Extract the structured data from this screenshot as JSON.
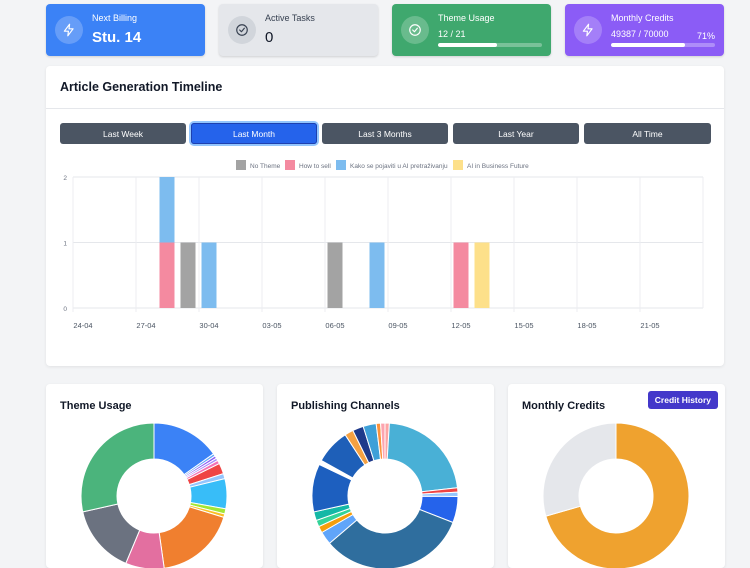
{
  "stats": {
    "billing": {
      "label": "Next Billing",
      "value": "Stu. 14",
      "icon": "bolt-icon"
    },
    "tasks": {
      "label": "Active Tasks",
      "value": "0",
      "icon": "check-circle-icon"
    },
    "theme": {
      "label": "Theme Usage",
      "value": "12 / 21",
      "fraction": 0.5714,
      "icon": "check-circle-icon"
    },
    "credits": {
      "label": "Monthly Credits",
      "value": "49387 / 70000",
      "percent": "71%",
      "fraction": 0.71,
      "icon": "bolt-icon"
    }
  },
  "timeline": {
    "title": "Article Generation Timeline",
    "ranges": [
      "Last Week",
      "Last Month",
      "Last 3 Months",
      "Last Year",
      "All Time"
    ],
    "active_range": "Last Month"
  },
  "chart_data": {
    "type": "bar",
    "stacked": true,
    "x_tick_labels": [
      "24-04",
      "27-04",
      "30-04",
      "03-05",
      "06-05",
      "09-05",
      "12-05",
      "15-05",
      "18-05",
      "21-05"
    ],
    "ylim": [
      0,
      2
    ],
    "y_ticks": [
      0,
      1,
      2
    ],
    "legend_position": "top",
    "grid": true,
    "series": [
      {
        "name": "No Theme",
        "color": "#a3a3a3"
      },
      {
        "name": "How to sell",
        "color": "#f48aa0"
      },
      {
        "name": "Kako se pojaviti u AI pretraživanju",
        "color": "#7dbcef"
      },
      {
        "name": "AI in Business Future",
        "color": "#fde08a"
      }
    ],
    "bars": [
      {
        "date": "28-04",
        "stack": [
          {
            "series": "How to sell",
            "value": 1
          },
          {
            "series": "Kako se pojaviti u AI pretraživanju",
            "value": 1
          }
        ]
      },
      {
        "date": "29-04",
        "stack": [
          {
            "series": "No Theme",
            "value": 1
          }
        ]
      },
      {
        "date": "30-04",
        "stack": [
          {
            "series": "Kako se pojaviti u AI pretraživanju",
            "value": 1
          }
        ]
      },
      {
        "date": "06-05",
        "stack": [
          {
            "series": "No Theme",
            "value": 1
          }
        ]
      },
      {
        "date": "08-05",
        "stack": [
          {
            "series": "Kako se pojaviti u AI pretraživanju",
            "value": 1
          }
        ]
      },
      {
        "date": "12-05",
        "stack": [
          {
            "series": "How to sell",
            "value": 1
          }
        ]
      },
      {
        "date": "13-05",
        "stack": [
          {
            "series": "AI in Business Future",
            "value": 1
          }
        ]
      }
    ]
  },
  "cards": {
    "theme_usage": {
      "title": "Theme Usage"
    },
    "publishing": {
      "title": "Publishing Channels"
    },
    "credits": {
      "title": "Monthly Credits",
      "button": "Credit History"
    }
  },
  "donuts": {
    "theme_usage": {
      "type": "pie",
      "slices": [
        {
          "value": 16,
          "color": "#3b82f6"
        },
        {
          "value": 0.6,
          "color": "#60a5fa"
        },
        {
          "value": 0.6,
          "color": "#8b5cf6"
        },
        {
          "value": 0.6,
          "color": "#a78bfa"
        },
        {
          "value": 0.8,
          "color": "#f472b6"
        },
        {
          "value": 2.5,
          "color": "#ef4444"
        },
        {
          "value": 1.2,
          "color": "#93c5fd"
        },
        {
          "value": 7,
          "color": "#38bdf8"
        },
        {
          "value": 1.2,
          "color": "#a3e635"
        },
        {
          "value": 0.8,
          "color": "#fbbf24"
        },
        {
          "value": 19,
          "color": "#f07f2f"
        },
        {
          "value": 9,
          "color": "#e36fa0"
        },
        {
          "value": 16,
          "color": "#6b7280"
        },
        {
          "value": 30,
          "color": "#4bb47c"
        }
      ]
    },
    "publishing": {
      "type": "pie",
      "slices": [
        {
          "value": 1,
          "color": "#fca5a5"
        },
        {
          "value": 23,
          "color": "#49b0d6"
        },
        {
          "value": 1,
          "color": "#ef4444"
        },
        {
          "value": 1,
          "color": "#93c5fd"
        },
        {
          "value": 6,
          "color": "#2563eb"
        },
        {
          "value": 34,
          "color": "#2f6e9e"
        },
        {
          "value": 3,
          "color": "#60a5fa"
        },
        {
          "value": 1.5,
          "color": "#f59e0b"
        },
        {
          "value": 1.5,
          "color": "#34d399"
        },
        {
          "value": 2,
          "color": "#14b8a6"
        },
        {
          "value": 11,
          "color": "#1d5fbf"
        },
        {
          "value": 1,
          "color": "#ffffff"
        },
        {
          "value": 8,
          "color": "#1e5fb8"
        },
        {
          "value": 2,
          "color": "#f5a142"
        },
        {
          "value": 2.5,
          "color": "#1e3a8a"
        },
        {
          "value": 3,
          "color": "#3ea0d8"
        },
        {
          "value": 1,
          "color": "#fb923c"
        },
        {
          "value": 1,
          "color": "#fda4af"
        }
      ]
    },
    "credits": {
      "type": "pie",
      "slices": [
        {
          "value": 49387,
          "color": "#efa22f"
        },
        {
          "value": 20613,
          "color": "#e5e7eb"
        }
      ]
    }
  }
}
